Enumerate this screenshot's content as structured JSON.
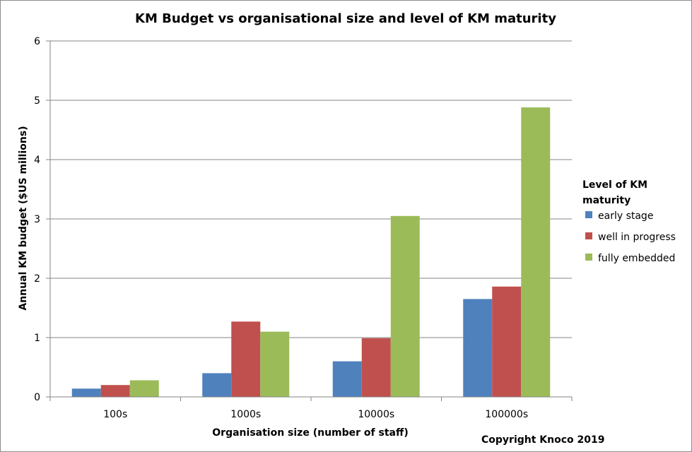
{
  "chart_data": {
    "type": "bar",
    "title": "KM Budget vs organisational size and level of KM maturity",
    "xlabel": "Organisation size (number of staff)",
    "ylabel": "Annual KM budget ($US millions)",
    "categories": [
      "100s",
      "1000s",
      "10000s",
      "100000s"
    ],
    "series": [
      {
        "name": "early stage",
        "color": "#4F81BD",
        "values": [
          0.14,
          0.4,
          0.6,
          1.65
        ]
      },
      {
        "name": "well in progress",
        "color": "#C0504D",
        "values": [
          0.2,
          1.27,
          0.99,
          1.86
        ]
      },
      {
        "name": "fully embedded",
        "color": "#9BBB59",
        "values": [
          0.28,
          1.1,
          3.05,
          4.88
        ]
      }
    ],
    "ylim": [
      0,
      6
    ],
    "yticks": [
      "0",
      "1",
      "2",
      "3",
      "4",
      "5",
      "6"
    ],
    "grid": true,
    "legend": {
      "title_line1": "Level of KM",
      "title_line2": "maturity",
      "position": "right"
    },
    "annotation": "Copyright Knoco 2019"
  }
}
